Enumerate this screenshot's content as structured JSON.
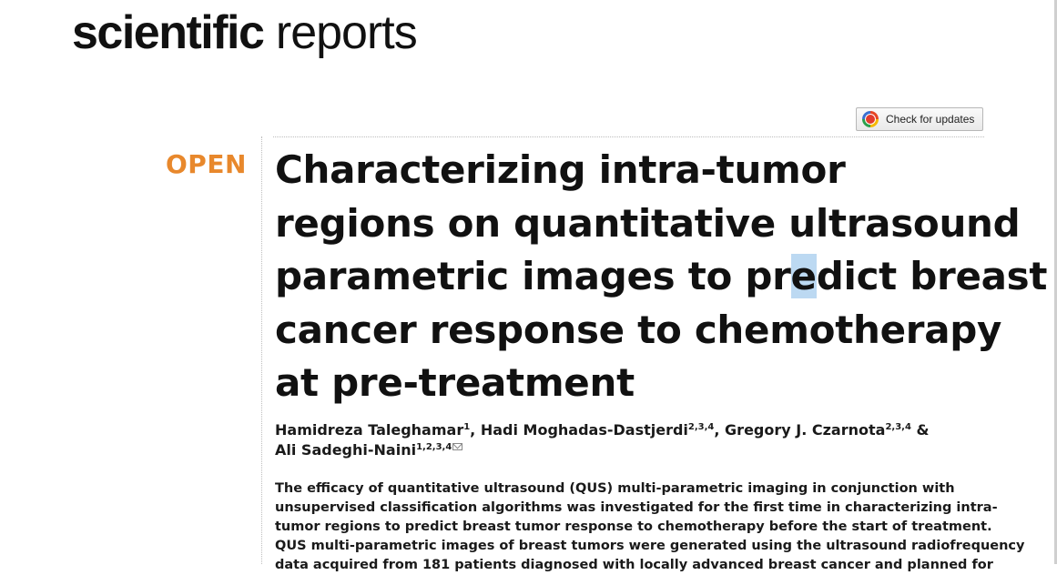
{
  "journal": {
    "name_bold": "scientific",
    "name_light": "reports"
  },
  "check_updates": {
    "label": "Check for updates",
    "icon": "crossmark-icon"
  },
  "article": {
    "access_label": "OPEN",
    "title_lines": [
      "Characterizing intra-tumor",
      "regions on quantitative ultrasound",
      "parametric images to predict breast",
      "cancer response to chemotherapy",
      "at pre-treatment"
    ],
    "title_line3_before": "parametric images to pr",
    "title_line3_highlight": "e",
    "title_line3_after": "dict breast",
    "authors": [
      {
        "name": "Hamidreza Taleghamar",
        "affil": "1",
        "sep": ", "
      },
      {
        "name": "Hadi Moghadas-Dastjerdi",
        "affil": "2,3,4",
        "sep": ", "
      },
      {
        "name": "Gregory J. Czarnota",
        "affil": "2,3,4",
        "sep": " &"
      },
      {
        "name": "Ali Sadeghi-Naini",
        "affil": "1,2,3,4",
        "sep": ""
      }
    ],
    "abstract_lines": [
      "The efficacy of quantitative ultrasound (QUS) multi-parametric imaging in conjunction with",
      "unsupervised classification algorithms was investigated for the first time in characterizing intra-",
      "tumor regions to predict breast tumor response to chemotherapy before the start of treatment.",
      "QUS multi-parametric images of breast tumors were generated using the ultrasound radiofrequency",
      "data acquired from 181 patients diagnosed with locally advanced breast cancer and planned for"
    ]
  },
  "colors": {
    "open_accent": "#e8882c",
    "text": "#111111",
    "selection_highlight": "#bcd9f2"
  }
}
